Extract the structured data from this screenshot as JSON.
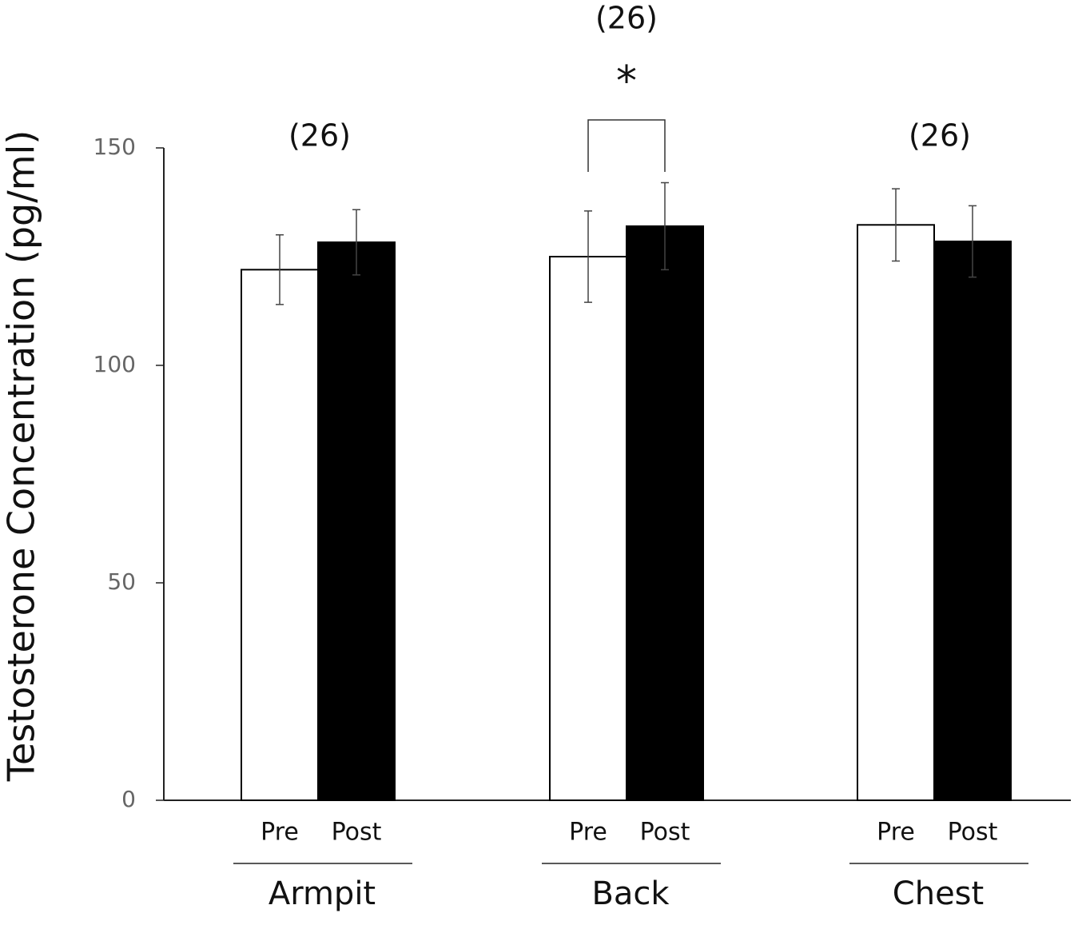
{
  "chart_data": {
    "type": "bar",
    "y_label": "Testosterone Concentration (pg/ml)",
    "categories": [
      "Armpit",
      "Back",
      "Chest"
    ],
    "series": [
      {
        "name": "Pre",
        "color": "#ffffff",
        "values": [
          122,
          125,
          132.3
        ],
        "errors": [
          8,
          10.5,
          8.3
        ]
      },
      {
        "name": "Post",
        "color": "#000000",
        "values": [
          128.3,
          132,
          128.5
        ],
        "errors": [
          7.5,
          10,
          8.2
        ]
      }
    ],
    "annotations": [
      "(26)",
      "(26)",
      "(26)",
      "*"
    ],
    "ylim": [
      0,
      150
    ],
    "yticks": [
      0,
      50,
      100,
      150
    ]
  }
}
